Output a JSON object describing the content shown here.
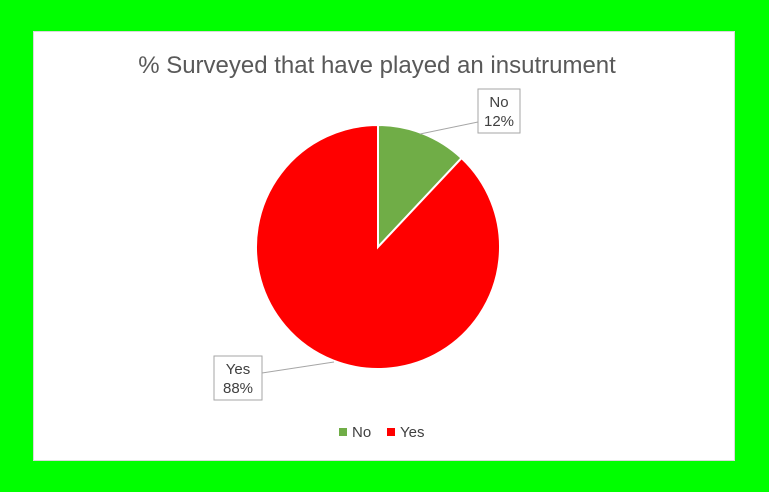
{
  "chart_data": {
    "type": "pie",
    "title": "% Surveyed that have played an insutrument",
    "categories": [
      "No",
      "Yes"
    ],
    "values": [
      12,
      88
    ],
    "data_labels": [
      {
        "category": "No",
        "percent": "12%"
      },
      {
        "category": "Yes",
        "percent": "88%"
      }
    ],
    "colors": {
      "No": "#70ad47",
      "Yes": "#ff0000"
    },
    "legend": {
      "placement": "bottom",
      "entries": [
        "No",
        "Yes"
      ]
    },
    "border_color": "#00ff00"
  }
}
